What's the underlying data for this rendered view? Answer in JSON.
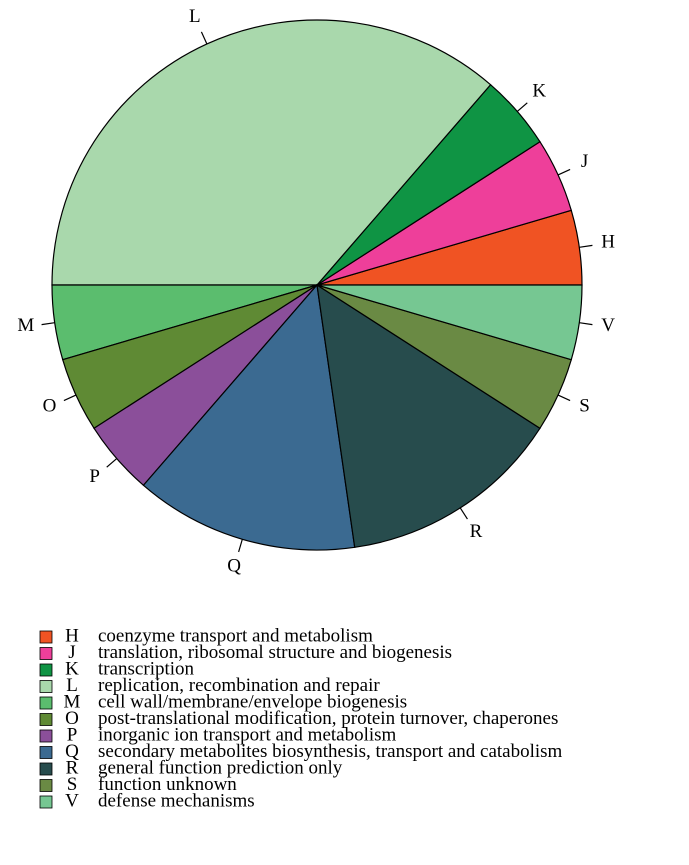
{
  "chart_data": {
    "type": "pie",
    "categories": [
      "H",
      "J",
      "K",
      "L",
      "M",
      "O",
      "P",
      "Q",
      "R",
      "S",
      "V"
    ],
    "values": [
      1,
      1,
      1,
      8,
      1,
      1,
      1,
      3,
      3,
      1,
      1
    ],
    "colors": [
      "#f05323",
      "#ee3f9a",
      "#0f9444",
      "#a9d8ac",
      "#5bbd6e",
      "#5f8a34",
      "#8b4f9a",
      "#3b6a91",
      "#274c4d",
      "#6a8a44",
      "#76c792"
    ],
    "legend_labels": [
      "coenzyme transport and metabolism",
      "translation, ribosomal structure and biogenesis",
      "transcription",
      "replication, recombination and repair",
      "cell wall/membrane/envelope biogenesis",
      "post-translational modification, protein turnover, chaperones",
      "inorganic ion transport and metabolism",
      "secondary metabolites biosynthesis, transport and catabolism",
      "general function prediction only",
      "function unknown",
      "defense mechanisms"
    ]
  }
}
